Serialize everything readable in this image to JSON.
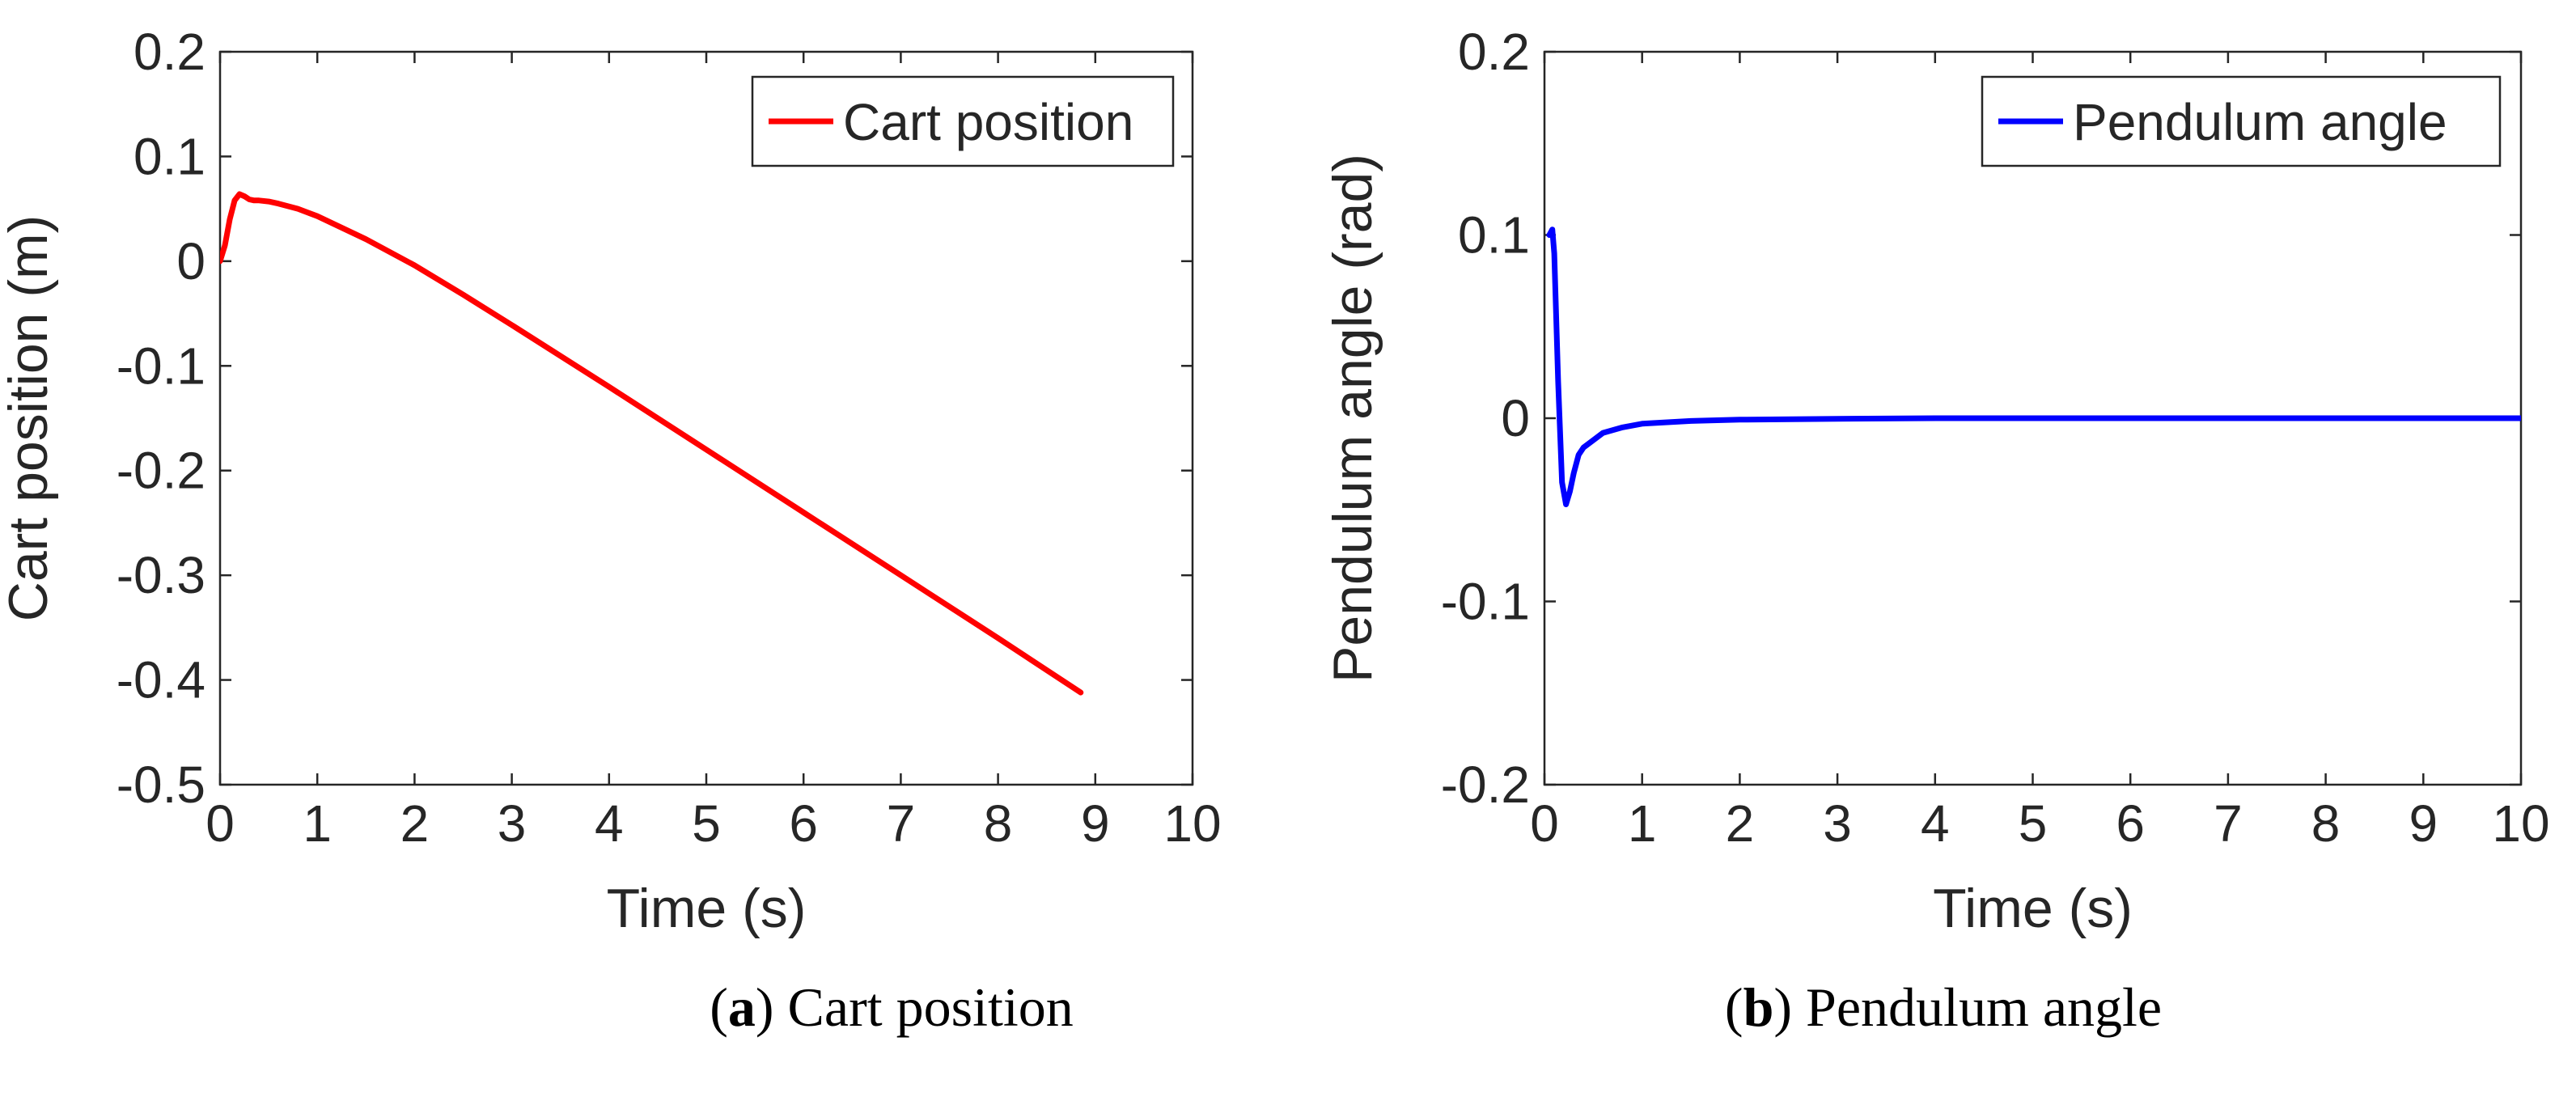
{
  "chart_data": [
    {
      "type": "line",
      "title": "",
      "xlabel": "Time (s)",
      "ylabel": "Cart position (m)",
      "xlim": [
        0,
        10
      ],
      "ylim": [
        -0.5,
        0.2
      ],
      "xticks": [
        0,
        1,
        2,
        3,
        4,
        5,
        6,
        7,
        8,
        9,
        10
      ],
      "yticks": [
        -0.5,
        -0.4,
        -0.3,
        -0.2,
        -0.1,
        0,
        0.1,
        0.2
      ],
      "xtick_labels": [
        "0",
        "1",
        "2",
        "3",
        "4",
        "5",
        "6",
        "7",
        "8",
        "9",
        "10"
      ],
      "ytick_labels": [
        "-0.5",
        "-0.4",
        "-0.3",
        "-0.2",
        "-0.1",
        "0",
        "0.1",
        "0.2"
      ],
      "grid": false,
      "legend": "top-right",
      "caption_letter": "a",
      "caption_text": "Cart position",
      "series": [
        {
          "name": "Cart position",
          "color": "#ff0000",
          "x": [
            0,
            0.05,
            0.1,
            0.15,
            0.2,
            0.25,
            0.3,
            0.35,
            0.4,
            0.5,
            0.6,
            0.8,
            1.0,
            1.5,
            2.0,
            2.5,
            3.0,
            4.0,
            5.0,
            6.0,
            7.0,
            8.0,
            8.85
          ],
          "y": [
            0.0,
            0.015,
            0.04,
            0.058,
            0.064,
            0.062,
            0.059,
            0.058,
            0.058,
            0.057,
            0.055,
            0.05,
            0.043,
            0.021,
            -0.004,
            -0.032,
            -0.061,
            -0.12,
            -0.18,
            -0.24,
            -0.3,
            -0.36,
            -0.412
          ]
        }
      ]
    },
    {
      "type": "line",
      "title": "",
      "xlabel": "Time (s)",
      "ylabel": "Pendulum angle (rad)",
      "xlim": [
        0,
        10
      ],
      "ylim": [
        -0.2,
        0.2
      ],
      "xticks": [
        0,
        1,
        2,
        3,
        4,
        5,
        6,
        7,
        8,
        9,
        10
      ],
      "yticks": [
        -0.2,
        -0.1,
        0,
        0.1,
        0.2
      ],
      "xtick_labels": [
        "0",
        "1",
        "2",
        "3",
        "4",
        "5",
        "6",
        "7",
        "8",
        "9",
        "10"
      ],
      "ytick_labels": [
        "-0.2",
        "-0.1",
        "0",
        "0.1",
        "0.2"
      ],
      "grid": false,
      "legend": "top-right",
      "caption_letter": "b",
      "caption_text": "Pendulum angle",
      "series": [
        {
          "name": "Pendulum angle",
          "color": "#0000ff",
          "x": [
            0.05,
            0.08,
            0.1,
            0.14,
            0.18,
            0.22,
            0.26,
            0.3,
            0.35,
            0.4,
            0.5,
            0.6,
            0.8,
            1.0,
            1.5,
            2.0,
            3.0,
            4.0,
            6.0,
            8.0,
            10.0
          ],
          "y": [
            0.1,
            0.103,
            0.09,
            0.02,
            -0.035,
            -0.047,
            -0.04,
            -0.03,
            -0.02,
            -0.016,
            -0.012,
            -0.008,
            -0.005,
            -0.003,
            -0.0015,
            -0.0008,
            -0.0003,
            0.0,
            0.0,
            0.0,
            0.0
          ]
        }
      ]
    }
  ]
}
